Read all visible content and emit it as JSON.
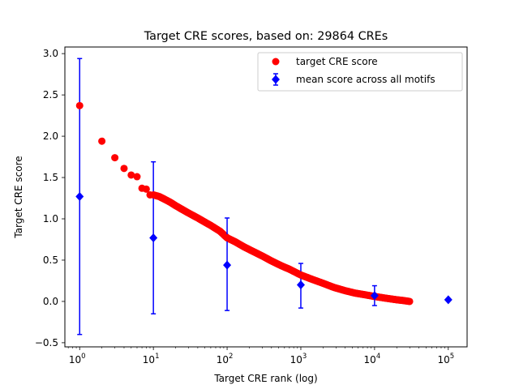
{
  "chart_data": {
    "type": "scatter",
    "title": "Target CRE scores, based on: 29864 CREs",
    "xlabel": "Target CRE rank (log)",
    "ylabel": "Target CRE score",
    "xscale": "log",
    "xlim": [
      0.63,
      180000
    ],
    "ylim": [
      -0.55,
      3.08
    ],
    "grid": false,
    "legend_position": "top-right",
    "x_ticks": [
      {
        "value": 1,
        "base": "10",
        "exp": "0"
      },
      {
        "value": 10,
        "base": "10",
        "exp": "1"
      },
      {
        "value": 100,
        "base": "10",
        "exp": "2"
      },
      {
        "value": 1000,
        "base": "10",
        "exp": "3"
      },
      {
        "value": 10000,
        "base": "10",
        "exp": "4"
      },
      {
        "value": 100000,
        "base": "10",
        "exp": "5"
      }
    ],
    "y_ticks": [
      {
        "value": -0.5,
        "label": "−0.5"
      },
      {
        "value": 0.0,
        "label": "0.0"
      },
      {
        "value": 0.5,
        "label": "0.5"
      },
      {
        "value": 1.0,
        "label": "1.0"
      },
      {
        "value": 1.5,
        "label": "1.5"
      },
      {
        "value": 2.0,
        "label": "2.0"
      },
      {
        "value": 2.5,
        "label": "2.5"
      },
      {
        "value": 3.0,
        "label": "3.0"
      }
    ],
    "series": [
      {
        "name": "target CRE score",
        "marker": "circle",
        "color": "#ff0000",
        "points": [
          {
            "x": 1,
            "y": 2.37
          },
          {
            "x": 2,
            "y": 1.94
          },
          {
            "x": 3,
            "y": 1.74
          },
          {
            "x": 4,
            "y": 1.61
          },
          {
            "x": 5,
            "y": 1.53
          },
          {
            "x": 6,
            "y": 1.51
          },
          {
            "x": 7,
            "y": 1.37
          },
          {
            "x": 8,
            "y": 1.36
          },
          {
            "x": 9,
            "y": 1.29
          },
          {
            "x": 10,
            "y": 1.29
          },
          {
            "x": 12,
            "y": 1.27
          },
          {
            "x": 14,
            "y": 1.24
          },
          {
            "x": 17,
            "y": 1.2
          },
          {
            "x": 20,
            "y": 1.16
          },
          {
            "x": 25,
            "y": 1.11
          },
          {
            "x": 30,
            "y": 1.07
          },
          {
            "x": 40,
            "y": 1.01
          },
          {
            "x": 50,
            "y": 0.96
          },
          {
            "x": 60,
            "y": 0.92
          },
          {
            "x": 80,
            "y": 0.85
          },
          {
            "x": 100,
            "y": 0.77
          },
          {
            "x": 130,
            "y": 0.72
          },
          {
            "x": 170,
            "y": 0.66
          },
          {
            "x": 220,
            "y": 0.61
          },
          {
            "x": 300,
            "y": 0.55
          },
          {
            "x": 400,
            "y": 0.49
          },
          {
            "x": 550,
            "y": 0.43
          },
          {
            "x": 700,
            "y": 0.39
          },
          {
            "x": 1000,
            "y": 0.32
          },
          {
            "x": 1400,
            "y": 0.27
          },
          {
            "x": 2000,
            "y": 0.22
          },
          {
            "x": 2800,
            "y": 0.17
          },
          {
            "x": 4000,
            "y": 0.13
          },
          {
            "x": 5500,
            "y": 0.1
          },
          {
            "x": 7500,
            "y": 0.08
          },
          {
            "x": 10000,
            "y": 0.06
          },
          {
            "x": 14000,
            "y": 0.04
          },
          {
            "x": 20000,
            "y": 0.02
          },
          {
            "x": 25000,
            "y": 0.01
          },
          {
            "x": 29864,
            "y": 0.0
          }
        ]
      },
      {
        "name": "mean score across all motifs",
        "marker": "diamond",
        "color": "#0000ff",
        "points": [
          {
            "x": 1,
            "y": 1.27,
            "err_low": -0.4,
            "err_high": 2.94
          },
          {
            "x": 10,
            "y": 0.77,
            "err_low": -0.15,
            "err_high": 1.69
          },
          {
            "x": 100,
            "y": 0.44,
            "err_low": -0.11,
            "err_high": 1.01
          },
          {
            "x": 1000,
            "y": 0.2,
            "err_low": -0.08,
            "err_high": 0.46
          },
          {
            "x": 10000,
            "y": 0.07,
            "err_low": -0.05,
            "err_high": 0.19
          },
          {
            "x": 100000,
            "y": 0.02,
            "err_low": 0.02,
            "err_high": 0.02
          }
        ]
      }
    ]
  }
}
